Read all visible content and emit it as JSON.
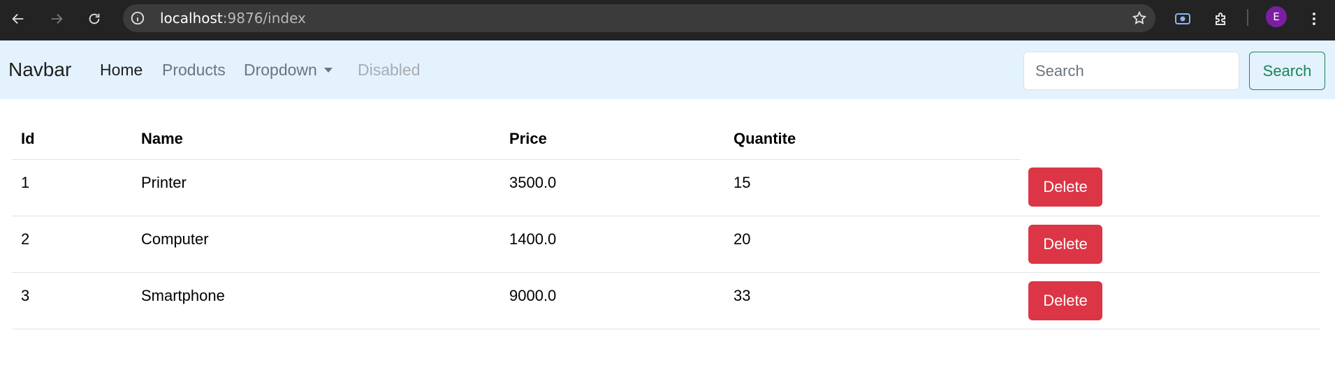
{
  "browser": {
    "url_host": "localhost",
    "url_path": ":9876/index",
    "profile_initial": "E"
  },
  "navbar": {
    "brand": "Navbar",
    "links": [
      {
        "label": "Home",
        "state": "active"
      },
      {
        "label": "Products",
        "state": "normal"
      },
      {
        "label": "Dropdown",
        "state": "dropdown"
      },
      {
        "label": "Disabled",
        "state": "disabled"
      }
    ],
    "search_placeholder": "Search",
    "search_button": "Search"
  },
  "table": {
    "headers": [
      "Id",
      "Name",
      "Price",
      "Quantite"
    ],
    "rows": [
      {
        "id": "1",
        "name": "Printer",
        "price": "3500.0",
        "quantite": "15",
        "action": "Delete"
      },
      {
        "id": "2",
        "name": "Computer",
        "price": "1400.0",
        "quantite": "20",
        "action": "Delete"
      },
      {
        "id": "3",
        "name": "Smartphone",
        "price": "9000.0",
        "quantite": "33",
        "action": "Delete"
      }
    ]
  },
  "colors": {
    "navbar_bg": "#e3f2fd",
    "danger": "#dc3545",
    "success": "#198754",
    "chrome_bg": "#232323"
  }
}
